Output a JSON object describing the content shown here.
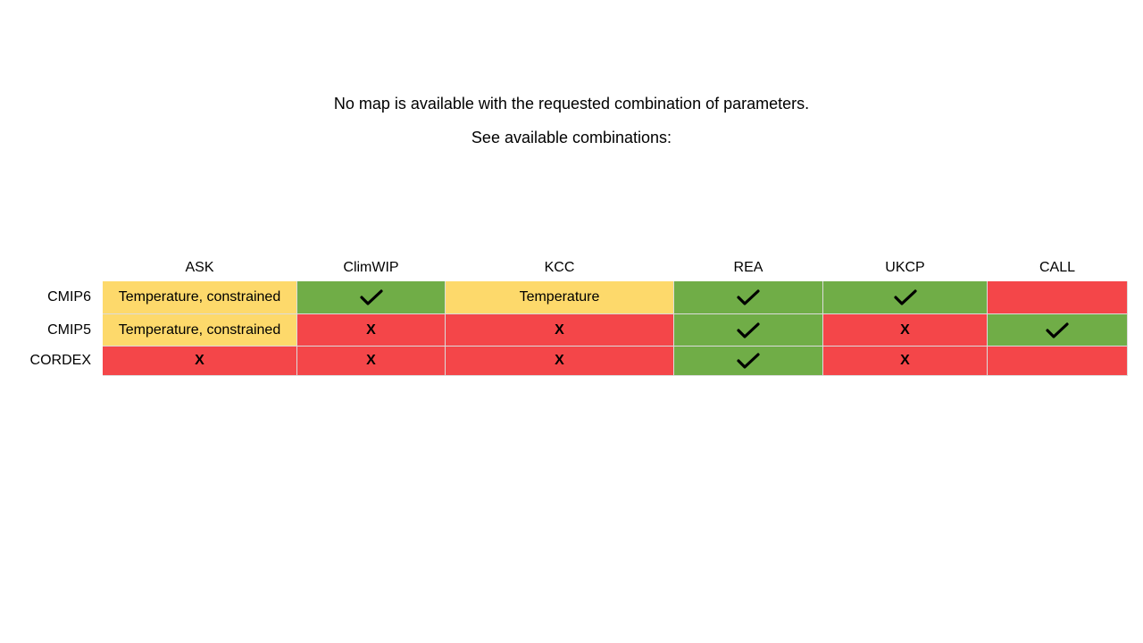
{
  "message": {
    "line1": "No map is available with the requested combination of parameters.",
    "line2": "See available combinations:"
  },
  "colors": {
    "available": "#70ad47",
    "unavailable": "#f44649",
    "partial": "#fdd96b"
  },
  "table": {
    "columns": [
      "ASK",
      "ClimWIP",
      "KCC",
      "REA",
      "UKCP",
      "CALL"
    ],
    "rows": [
      {
        "label": "CMIP6",
        "cells": [
          {
            "status": "partial",
            "text": "Temperature, constrained"
          },
          {
            "status": "ok",
            "icon": "check-icon"
          },
          {
            "status": "partial",
            "text": "Temperature"
          },
          {
            "status": "ok",
            "icon": "check-icon"
          },
          {
            "status": "ok",
            "icon": "check-icon"
          },
          {
            "status": "no",
            "text": ""
          }
        ]
      },
      {
        "label": "CMIP5",
        "cells": [
          {
            "status": "partial",
            "text": "Temperature, constrained"
          },
          {
            "status": "no",
            "text": "X"
          },
          {
            "status": "no",
            "text": "X"
          },
          {
            "status": "ok",
            "icon": "check-icon"
          },
          {
            "status": "no",
            "text": "X"
          },
          {
            "status": "ok",
            "icon": "check-icon"
          }
        ]
      },
      {
        "label": "CORDEX",
        "cells": [
          {
            "status": "no",
            "text": "X"
          },
          {
            "status": "no",
            "text": "X"
          },
          {
            "status": "no",
            "text": "X"
          },
          {
            "status": "ok",
            "icon": "check-icon"
          },
          {
            "status": "no",
            "text": "X"
          },
          {
            "status": "no",
            "text": ""
          }
        ]
      }
    ]
  }
}
